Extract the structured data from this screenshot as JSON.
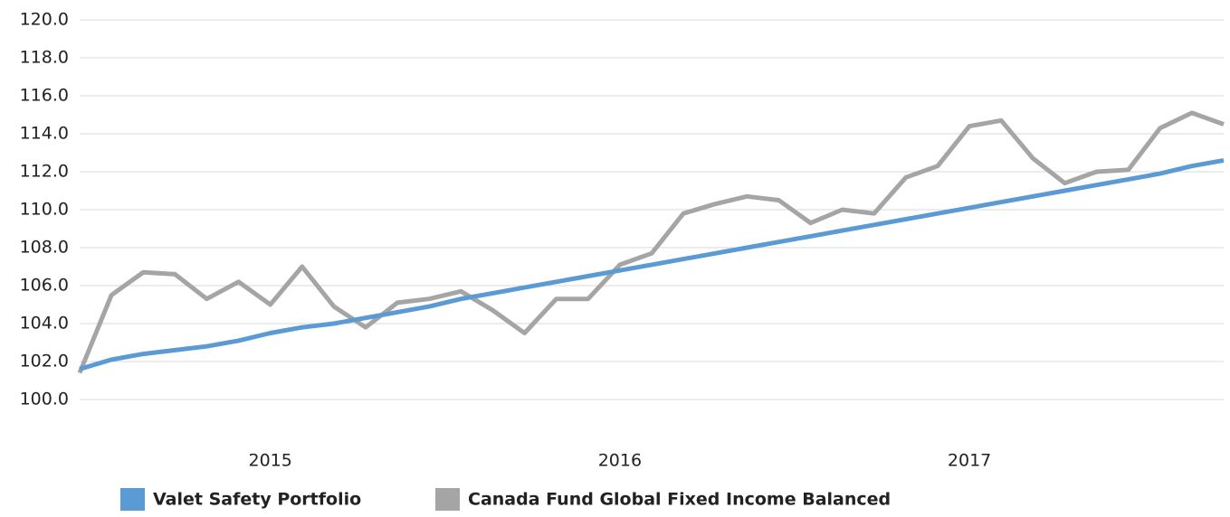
{
  "chart_data": {
    "type": "line",
    "categories": [
      null,
      null,
      null,
      null,
      null,
      null,
      "2015",
      null,
      null,
      null,
      null,
      null,
      null,
      null,
      null,
      null,
      null,
      "2016",
      null,
      null,
      null,
      null,
      null,
      null,
      null,
      null,
      null,
      null,
      "2017",
      null,
      null,
      null,
      null,
      null,
      null,
      null,
      null
    ],
    "series": [
      {
        "name": "Valet Safety Portfolio",
        "color": "#5b9bd5",
        "values": [
          101.6,
          102.1,
          102.4,
          102.6,
          102.8,
          103.1,
          103.5,
          103.8,
          104.0,
          104.3,
          104.6,
          104.9,
          105.3,
          105.6,
          105.9,
          106.2,
          106.5,
          106.8,
          107.1,
          107.4,
          107.7,
          108.0,
          108.3,
          108.6,
          108.9,
          109.2,
          109.5,
          109.8,
          110.1,
          110.4,
          110.7,
          111.0,
          111.3,
          111.6,
          111.9,
          112.3,
          112.6
        ]
      },
      {
        "name": "Canada Fund Global Fixed Income Balanced",
        "color": "#a5a5a5",
        "values": [
          101.4,
          105.5,
          106.7,
          106.6,
          105.3,
          106.2,
          105.0,
          107.0,
          104.9,
          103.8,
          105.1,
          105.3,
          105.7,
          104.7,
          103.5,
          105.3,
          105.3,
          107.1,
          107.7,
          109.8,
          110.3,
          110.7,
          110.5,
          109.3,
          110.0,
          109.8,
          111.7,
          112.3,
          114.4,
          114.7,
          112.7,
          111.4,
          112.0,
          112.1,
          114.3,
          115.1,
          114.5
        ]
      }
    ],
    "ylim": [
      100,
      120
    ],
    "yticks": [
      {
        "value": 100,
        "label": "100.0"
      },
      {
        "value": 102,
        "label": "102.0"
      },
      {
        "value": 104,
        "label": "104.0"
      },
      {
        "value": 106,
        "label": "106.0"
      },
      {
        "value": 108,
        "label": "108.0"
      },
      {
        "value": 110,
        "label": "110.0"
      },
      {
        "value": 112,
        "label": "112.0"
      },
      {
        "value": 114,
        "label": "114.0"
      },
      {
        "value": 116,
        "label": "116.0"
      },
      {
        "value": 118,
        "label": "118.0"
      },
      {
        "value": 120,
        "label": "120.0"
      }
    ],
    "grid": true,
    "legend": "bottom"
  }
}
